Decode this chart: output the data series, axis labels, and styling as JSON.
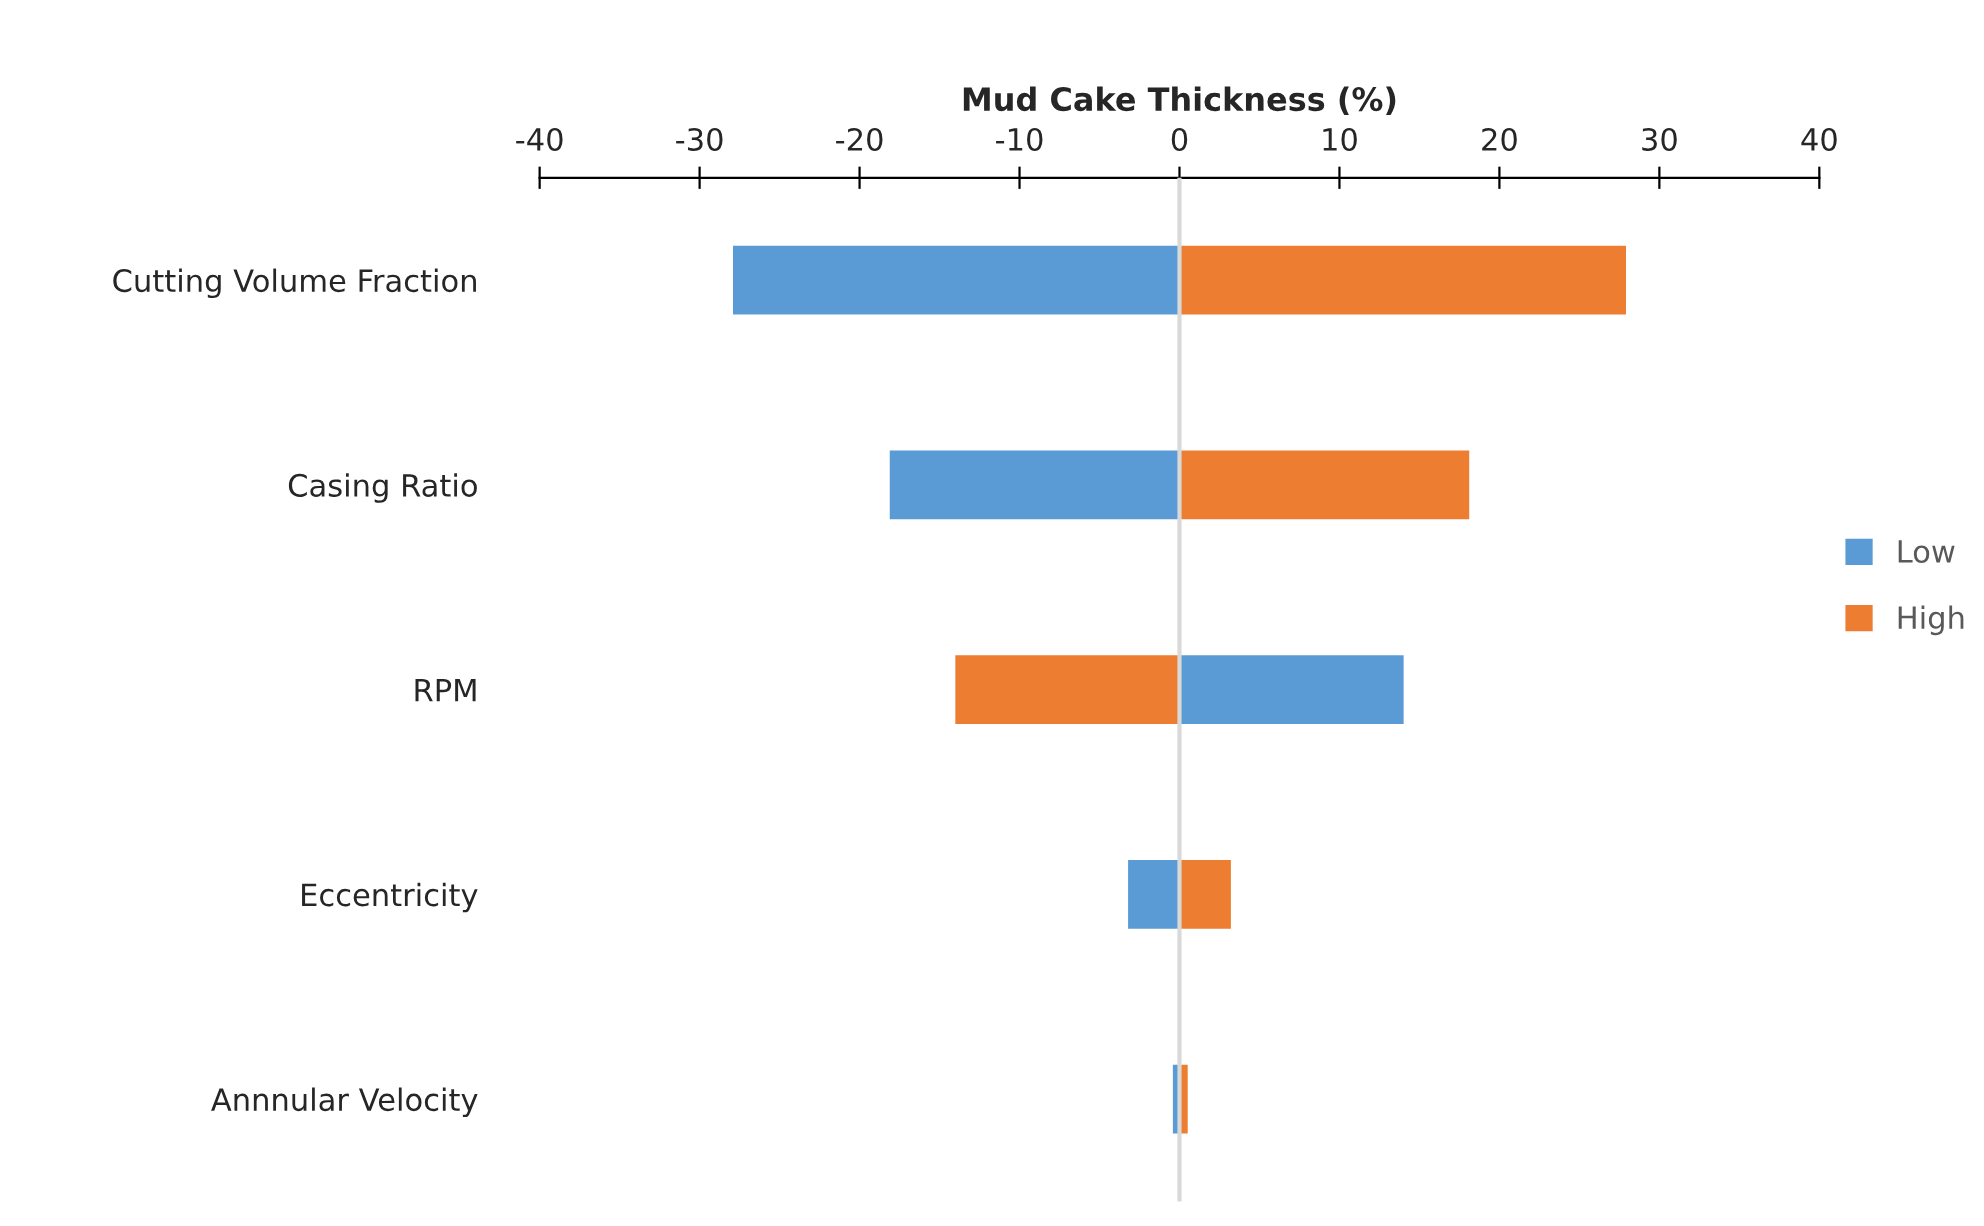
{
  "chart_data": {
    "type": "bar",
    "orientation": "horizontal",
    "xlabel": "Mud Cake Thickness (%)",
    "categories": [
      "Cutting Volume Fraction",
      "Casing Ratio",
      "RPM",
      "Eccentricity",
      "Annnular Velocity"
    ],
    "series": [
      {
        "name": "Low",
        "color": "#5b9bd5",
        "values": [
          -28,
          -18.2,
          14.1,
          -3.3,
          -0.5
        ]
      },
      {
        "name": "High",
        "color": "#ed7d31",
        "values": [
          28,
          18.2,
          -14.1,
          3.3,
          0.6
        ]
      }
    ],
    "xlim": [
      -40,
      40
    ],
    "xticks": [
      -40,
      -30,
      -20,
      -10,
      0,
      10,
      20,
      30,
      40
    ],
    "ref_lines": [
      {
        "axis": "x",
        "value": 0,
        "color": "#d9d9d9"
      }
    ],
    "grid": false,
    "legend": "right",
    "stacked": true
  }
}
